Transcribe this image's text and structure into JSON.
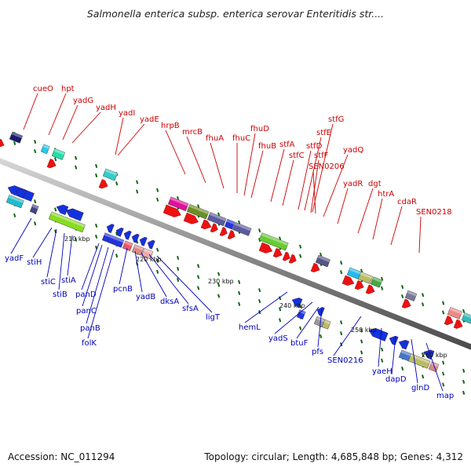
{
  "title": "Salmonella enterica subsp. enterica serovar Enteritidis str....",
  "footer": {
    "accession": "Accession: NC_011294",
    "topology": "Topology: circular; Length: 4,685,848 bp; Genes: 4,312"
  },
  "colors": {
    "forward_label": "#cc0000",
    "reverse_label": "#0000bb",
    "forward_arrow": "#ee1111",
    "reverse_arrow": "#1133dd",
    "backbone": "#8a8a8a",
    "tick": "#116611"
  },
  "scale_labels": [
    "210 kbp",
    "220 kbp",
    "230 kbp",
    "240 kbp",
    "250 kbp",
    "260 kbp"
  ],
  "forward_genes": [
    "cueO",
    "hpt",
    "yadG",
    "yadH",
    "yadI",
    "yadE",
    "hrpB",
    "mrcB",
    "fhuA",
    "fhuC",
    "fhuD",
    "fhuB",
    "stfA",
    "stfC",
    "stfD",
    "stfE",
    "stfG",
    "stfF",
    "SEN0206",
    "yadQ",
    "yadR",
    "dgt",
    "htrA",
    "cdaR",
    "SEN0218"
  ],
  "reverse_genes": [
    "yadF",
    "stiH",
    "stiC",
    "stiB",
    "stiA",
    "panD",
    "panC",
    "panB",
    "folK",
    "pcnB",
    "yadB",
    "dksA",
    "sfsA",
    "ligT",
    "hemL",
    "yadS",
    "btuF",
    "pfs",
    "SEN0216",
    "yaeH",
    "dapD",
    "glnD",
    "map"
  ]
}
